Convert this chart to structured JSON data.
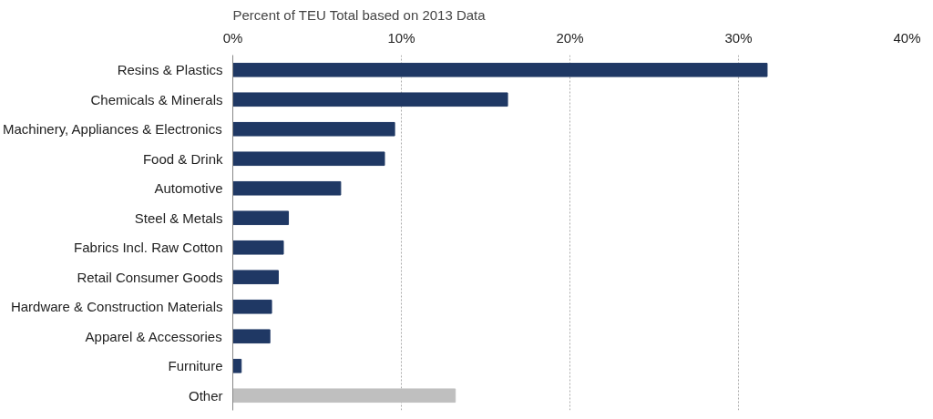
{
  "chart_data": {
    "type": "bar",
    "orientation": "horizontal",
    "title": "Percent of TEU Total based on  2013 Data",
    "categories": [
      "Resins & Plastics",
      "Chemicals & Minerals",
      "Machinery, Appliances & Electronics",
      "Food & Drink",
      "Automotive",
      "Steel & Metals",
      "Fabrics Incl. Raw Cotton",
      "Retail Consumer Goods",
      "Hardware & Construction Materials",
      "Apparel & Accessories",
      "Furniture",
      "Other"
    ],
    "values": [
      31.7,
      16.3,
      9.6,
      9.0,
      6.4,
      3.3,
      3.0,
      2.7,
      2.3,
      2.2,
      0.5,
      13.2
    ],
    "colors": [
      "#1f3864",
      "#1f3864",
      "#1f3864",
      "#1f3864",
      "#1f3864",
      "#1f3864",
      "#1f3864",
      "#1f3864",
      "#1f3864",
      "#1f3864",
      "#1f3864",
      "#bfbfbf"
    ],
    "xlim": [
      0,
      40
    ],
    "xticks": [
      {
        "value": 0,
        "label": "0%"
      },
      {
        "value": 10,
        "label": "10%"
      },
      {
        "value": 20,
        "label": "20%"
      },
      {
        "value": 30,
        "label": "30%"
      },
      {
        "value": 40,
        "label": "40%"
      }
    ],
    "grid": "x"
  }
}
